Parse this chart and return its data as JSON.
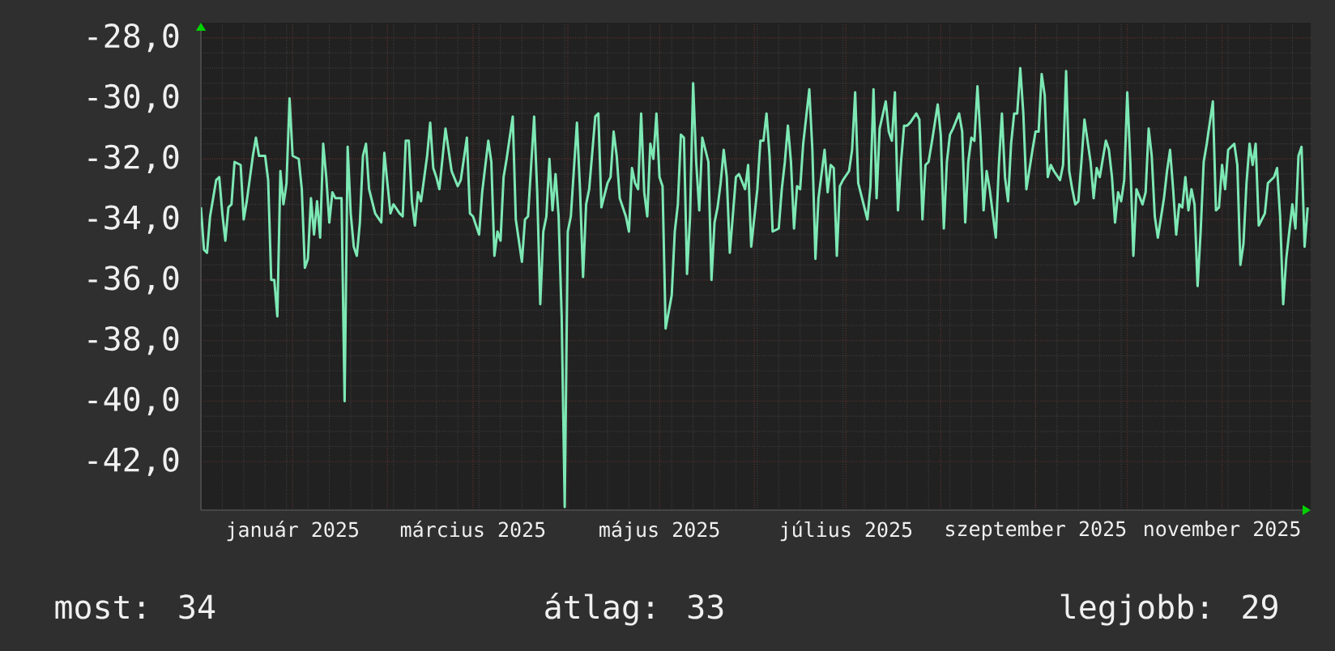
{
  "chart_data": {
    "type": "line",
    "x": [
      "2024-12-02",
      "2024-12-03",
      "2024-12-04",
      "2024-12-05",
      "2024-12-07",
      "2024-12-08",
      "2024-12-09",
      "2024-12-10",
      "2024-12-11",
      "2024-12-12",
      "2024-12-13",
      "2024-12-15",
      "2024-12-16",
      "2024-12-17",
      "2024-12-19",
      "2024-12-20",
      "2024-12-21",
      "2024-12-23",
      "2024-12-24",
      "2024-12-25",
      "2024-12-26",
      "2024-12-27",
      "2024-12-28",
      "2024-12-29",
      "2024-12-30",
      "2024-12-31",
      "2025-01-01",
      "2025-01-03",
      "2025-01-04",
      "2025-01-05",
      "2025-01-06",
      "2025-01-07",
      "2025-01-08",
      "2025-01-09",
      "2025-01-10",
      "2025-01-11",
      "2025-01-12",
      "2025-01-13",
      "2025-01-14",
      "2025-01-15",
      "2025-01-17",
      "2025-01-18",
      "2025-01-19",
      "2025-01-20",
      "2025-01-21",
      "2025-01-22",
      "2025-01-23",
      "2025-01-24",
      "2025-01-25",
      "2025-01-26",
      "2025-01-28",
      "2025-01-30",
      "2025-01-31",
      "2025-02-01",
      "2025-02-02",
      "2025-02-03",
      "2025-02-05",
      "2025-02-06",
      "2025-02-07",
      "2025-02-08",
      "2025-02-09",
      "2025-02-10",
      "2025-02-11",
      "2025-02-12",
      "2025-02-14",
      "2025-02-15",
      "2025-02-16",
      "2025-02-17",
      "2025-02-18",
      "2025-02-20",
      "2025-02-22",
      "2025-02-24",
      "2025-02-25",
      "2025-02-27",
      "2025-02-28",
      "2025-03-01",
      "2025-03-03",
      "2025-03-04",
      "2025-03-06",
      "2025-03-07",
      "2025-03-08",
      "2025-03-09",
      "2025-03-10",
      "2025-03-11",
      "2025-03-12",
      "2025-03-14",
      "2025-03-15",
      "2025-03-17",
      "2025-03-18",
      "2025-03-19",
      "2025-03-21",
      "2025-03-22",
      "2025-03-23",
      "2025-03-24",
      "2025-03-25",
      "2025-03-26",
      "2025-03-27",
      "2025-03-28",
      "2025-03-29",
      "2025-03-30",
      "2025-03-31",
      "2025-04-01",
      "2025-04-02",
      "2025-04-04",
      "2025-04-05",
      "2025-04-06",
      "2025-04-07",
      "2025-04-08",
      "2025-04-10",
      "2025-04-11",
      "2025-04-12",
      "2025-04-14",
      "2025-04-15",
      "2025-04-16",
      "2025-04-17",
      "2025-04-18",
      "2025-04-20",
      "2025-04-21",
      "2025-04-22",
      "2025-04-23",
      "2025-04-24",
      "2025-04-25",
      "2025-04-26",
      "2025-04-27",
      "2025-04-28",
      "2025-04-29",
      "2025-04-30",
      "2025-05-01",
      "2025-05-02",
      "2025-05-03",
      "2025-05-05",
      "2025-05-06",
      "2025-05-07",
      "2025-05-08",
      "2025-05-09",
      "2025-05-10",
      "2025-05-11",
      "2025-05-12",
      "2025-05-13",
      "2025-05-14",
      "2025-05-15",
      "2025-05-17",
      "2025-05-18",
      "2025-05-19",
      "2025-05-20",
      "2025-05-21",
      "2025-05-22",
      "2025-05-23",
      "2025-05-24",
      "2025-05-26",
      "2025-05-27",
      "2025-05-29",
      "2025-05-30",
      "2025-05-31",
      "2025-06-02",
      "2025-06-03",
      "2025-06-04",
      "2025-06-05",
      "2025-06-06",
      "2025-06-07",
      "2025-06-09",
      "2025-06-10",
      "2025-06-11",
      "2025-06-12",
      "2025-06-13",
      "2025-06-14",
      "2025-06-15",
      "2025-06-16",
      "2025-06-17",
      "2025-06-19",
      "2025-06-20",
      "2025-06-21",
      "2025-06-22",
      "2025-06-24",
      "2025-06-25",
      "2025-06-26",
      "2025-06-27",
      "2025-06-28",
      "2025-06-29",
      "2025-06-30",
      "2025-07-02",
      "2025-07-03",
      "2025-07-04",
      "2025-07-05",
      "2025-07-06",
      "2025-07-08",
      "2025-07-09",
      "2025-07-10",
      "2025-07-11",
      "2025-07-12",
      "2025-07-14",
      "2025-07-15",
      "2025-07-16",
      "2025-07-17",
      "2025-07-18",
      "2025-07-19",
      "2025-07-20",
      "2025-07-21",
      "2025-07-22",
      "2025-07-24",
      "2025-07-25",
      "2025-07-26",
      "2025-07-27",
      "2025-07-28",
      "2025-07-29",
      "2025-07-31",
      "2025-08-01",
      "2025-08-02",
      "2025-08-03",
      "2025-08-04",
      "2025-08-05",
      "2025-08-07",
      "2025-08-08",
      "2025-08-09",
      "2025-08-10",
      "2025-08-11",
      "2025-08-12",
      "2025-08-13",
      "2025-08-14",
      "2025-08-15",
      "2025-08-16",
      "2025-08-17",
      "2025-08-19",
      "2025-08-20",
      "2025-08-21",
      "2025-08-22",
      "2025-08-23",
      "2025-08-24",
      "2025-08-25",
      "2025-08-26",
      "2025-08-27",
      "2025-08-28",
      "2025-08-29",
      "2025-08-31",
      "2025-09-01",
      "2025-09-02",
      "2025-09-03",
      "2025-09-04",
      "2025-09-05",
      "2025-09-06",
      "2025-09-07",
      "2025-09-09",
      "2025-09-10",
      "2025-09-11",
      "2025-09-12",
      "2025-09-13",
      "2025-09-14",
      "2025-09-15",
      "2025-09-16",
      "2025-09-17",
      "2025-09-19",
      "2025-09-20",
      "2025-09-21",
      "2025-09-22",
      "2025-09-24",
      "2025-09-25",
      "2025-09-26",
      "2025-09-27",
      "2025-09-28",
      "2025-09-29",
      "2025-09-30",
      "2025-10-01",
      "2025-10-02",
      "2025-10-03",
      "2025-10-04",
      "2025-10-06",
      "2025-10-07",
      "2025-10-08",
      "2025-10-09",
      "2025-10-10",
      "2025-10-11",
      "2025-10-13",
      "2025-10-14",
      "2025-10-15",
      "2025-10-16",
      "2025-10-17",
      "2025-10-18",
      "2025-10-19",
      "2025-10-20",
      "2025-10-21",
      "2025-10-22",
      "2025-10-23",
      "2025-10-24",
      "2025-10-25",
      "2025-10-26",
      "2025-10-27",
      "2025-10-29",
      "2025-10-30",
      "2025-10-31",
      "2025-11-01",
      "2025-11-02",
      "2025-11-03",
      "2025-11-05",
      "2025-11-06",
      "2025-11-07",
      "2025-11-08",
      "2025-11-09",
      "2025-11-10",
      "2025-11-11",
      "2025-11-12",
      "2025-11-13",
      "2025-11-15",
      "2025-11-16",
      "2025-11-18",
      "2025-11-19",
      "2025-11-20",
      "2025-11-21",
      "2025-11-22",
      "2025-11-23",
      "2025-11-24",
      "2025-11-25",
      "2025-11-26",
      "2025-11-27",
      "2025-11-28",
      "2025-11-29"
    ],
    "series": [
      {
        "color": "#7de8b4",
        "values": [
          -33.6,
          -35.0,
          -35.1,
          -33.9,
          -32.7,
          -32.6,
          -33.8,
          -34.7,
          -33.6,
          -33.5,
          -32.1,
          -32.2,
          -34.0,
          -33.4,
          -31.9,
          -31.3,
          -31.9,
          -31.9,
          -32.7,
          -36.0,
          -36.0,
          -37.2,
          -32.4,
          -33.5,
          -32.8,
          -30.0,
          -31.9,
          -32.0,
          -33.0,
          -35.6,
          -35.3,
          -33.3,
          -34.5,
          -33.4,
          -34.6,
          -31.5,
          -32.6,
          -34.1,
          -33.1,
          -33.3,
          -33.3,
          -40.0,
          -31.6,
          -33.8,
          -34.9,
          -35.2,
          -34.1,
          -31.9,
          -31.5,
          -33.0,
          -33.8,
          -34.1,
          -31.8,
          -32.8,
          -33.8,
          -33.5,
          -33.8,
          -33.9,
          -31.4,
          -31.4,
          -33.4,
          -34.2,
          -33.1,
          -33.4,
          -31.9,
          -30.8,
          -32.3,
          -32.6,
          -33.0,
          -31.0,
          -32.4,
          -32.9,
          -32.7,
          -31.3,
          -33.8,
          -33.9,
          -34.5,
          -33.1,
          -31.4,
          -32.1,
          -35.2,
          -34.4,
          -34.7,
          -32.6,
          -32.0,
          -30.6,
          -34.0,
          -35.4,
          -34.0,
          -33.9,
          -30.6,
          -33.1,
          -36.8,
          -34.4,
          -33.9,
          -32.0,
          -33.7,
          -32.5,
          -33.9,
          -37.2,
          -43.5,
          -34.4,
          -33.9,
          -30.8,
          -33.0,
          -35.9,
          -33.5,
          -33.0,
          -30.6,
          -30.5,
          -33.6,
          -32.8,
          -32.6,
          -31.1,
          -31.9,
          -33.3,
          -33.9,
          -34.4,
          -32.3,
          -32.8,
          -33.0,
          -30.5,
          -33.1,
          -33.9,
          -31.5,
          -32.0,
          -30.5,
          -32.6,
          -32.9,
          -37.6,
          -36.5,
          -34.4,
          -33.5,
          -31.2,
          -31.3,
          -35.8,
          -33.9,
          -29.5,
          -32.1,
          -33.7,
          -31.3,
          -32.1,
          -36.0,
          -34.1,
          -33.6,
          -32.8,
          -31.7,
          -32.6,
          -35.1,
          -32.6,
          -32.5,
          -33.0,
          -32.2,
          -34.9,
          -33.0,
          -31.4,
          -31.4,
          -30.5,
          -31.9,
          -34.4,
          -34.3,
          -33.0,
          -32.1,
          -30.9,
          -32.1,
          -34.3,
          -32.9,
          -33.0,
          -31.5,
          -29.7,
          -31.7,
          -35.3,
          -33.3,
          -31.7,
          -33.1,
          -32.2,
          -32.3,
          -35.2,
          -32.9,
          -32.7,
          -32.4,
          -31.7,
          -29.8,
          -32.8,
          -33.2,
          -34.0,
          -32.9,
          -29.7,
          -33.3,
          -31.0,
          -30.1,
          -31.1,
          -31.4,
          -29.8,
          -33.7,
          -32.1,
          -30.9,
          -30.9,
          -30.8,
          -30.5,
          -30.7,
          -34.0,
          -32.2,
          -32.1,
          -31.5,
          -30.2,
          -31.2,
          -34.3,
          -32.1,
          -31.2,
          -31.0,
          -30.5,
          -31.1,
          -34.1,
          -32.1,
          -31.3,
          -31.4,
          -29.6,
          -31.3,
          -33.7,
          -32.4,
          -33.0,
          -34.6,
          -32.2,
          -30.5,
          -32.6,
          -33.4,
          -31.5,
          -30.5,
          -30.5,
          -29.0,
          -30.5,
          -33.0,
          -31.7,
          -31.1,
          -31.1,
          -29.2,
          -29.9,
          -32.6,
          -32.2,
          -32.4,
          -32.7,
          -32.2,
          -29.1,
          -32.4,
          -33.0,
          -33.5,
          -33.4,
          -32.1,
          -30.7,
          -32.1,
          -33.3,
          -32.3,
          -32.6,
          -31.4,
          -31.7,
          -32.6,
          -34.1,
          -33.1,
          -33.4,
          -32.7,
          -29.8,
          -32.1,
          -35.2,
          -33.0,
          -33.5,
          -33.1,
          -31.0,
          -31.9,
          -33.9,
          -34.6,
          -33.3,
          -32.4,
          -31.7,
          -33.0,
          -34.5,
          -33.5,
          -33.6,
          -32.6,
          -33.7,
          -33.0,
          -33.5,
          -36.2,
          -34.4,
          -32.1,
          -31.5,
          -30.1,
          -33.7,
          -33.6,
          -32.2,
          -33.0,
          -31.7,
          -31.5,
          -32.2,
          -35.5,
          -34.8,
          -32.8,
          -31.5,
          -32.2,
          -31.5,
          -34.2,
          -33.8,
          -32.8,
          -32.6,
          -32.3,
          -33.9,
          -36.8,
          -35.3,
          -34.4,
          -33.5,
          -34.3,
          -31.9,
          -31.6,
          -34.9,
          -33.6
        ]
      }
    ],
    "xlim": [
      "2024-12-02",
      "2025-11-30"
    ],
    "xticks": [
      {
        "value": "2025-01-01",
        "label": "január 2025"
      },
      {
        "value": "2025-02-01",
        "label": null
      },
      {
        "value": "2025-03-01",
        "label": "március 2025"
      },
      {
        "value": "2025-04-01",
        "label": null
      },
      {
        "value": "2025-05-01",
        "label": "május 2025"
      },
      {
        "value": "2025-06-01",
        "label": null
      },
      {
        "value": "2025-07-01",
        "label": "július 2025"
      },
      {
        "value": "2025-08-01",
        "label": null
      },
      {
        "value": "2025-09-01",
        "label": "szeptember 2025"
      },
      {
        "value": "2025-10-01",
        "label": null
      },
      {
        "value": "2025-11-01",
        "label": "november 2025"
      }
    ],
    "ylim": [
      -43.6,
      -27.5
    ],
    "yticks": [
      {
        "value": -28,
        "label": "-28,0"
      },
      {
        "value": -30,
        "label": "-30,0"
      },
      {
        "value": -32,
        "label": "-32,0"
      },
      {
        "value": -34,
        "label": "-34,0"
      },
      {
        "value": -36,
        "label": "-36,0"
      },
      {
        "value": -38,
        "label": "-38,0"
      },
      {
        "value": -40,
        "label": "-40,0"
      },
      {
        "value": -42,
        "label": "-42,0"
      }
    ],
    "grid": true,
    "annotations": [
      "most: 34",
      "átlag: 33",
      "legjobb: 29"
    ]
  }
}
